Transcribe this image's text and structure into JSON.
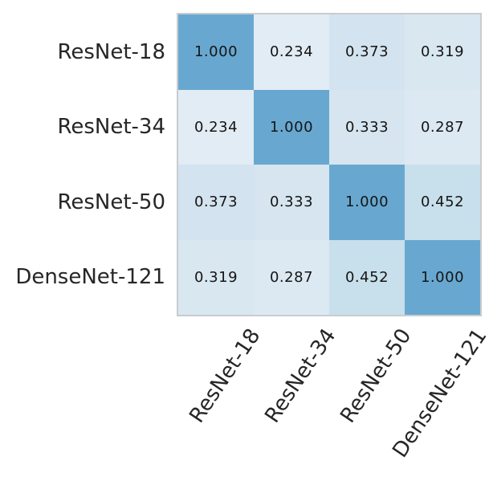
{
  "chart_data": {
    "type": "heatmap",
    "title": "",
    "categories": [
      "ResNet-18",
      "ResNet-34",
      "ResNet-50",
      "DenseNet-121"
    ],
    "x_tick_labels": [
      "ResNet-18",
      "ResNet-34",
      "ResNet-50",
      "DenseNet-121"
    ],
    "y_tick_labels": [
      "ResNet-18",
      "ResNet-34",
      "ResNet-50",
      "DenseNet-121"
    ],
    "matrix": [
      [
        1.0,
        0.234,
        0.373,
        0.319
      ],
      [
        0.234,
        1.0,
        0.333,
        0.287
      ],
      [
        0.373,
        0.333,
        1.0,
        0.452
      ],
      [
        0.319,
        0.287,
        0.452,
        1.0
      ]
    ],
    "cell_labels": [
      [
        "1.000",
        "0.234",
        "0.373",
        "0.319"
      ],
      [
        "0.234",
        "1.000",
        "0.333",
        "0.287"
      ],
      [
        "0.373",
        "0.333",
        "1.000",
        "0.452"
      ],
      [
        "0.319",
        "0.287",
        "0.452",
        "1.000"
      ]
    ],
    "cell_colors": [
      [
        "#68a8d0",
        "#e2ecf4",
        "#d3e3ef",
        "#d9e7f1"
      ],
      [
        "#e2ecf4",
        "#68a8d0",
        "#d6e5ef",
        "#dce9f2"
      ],
      [
        "#d3e3ef",
        "#d6e5ef",
        "#68a8d0",
        "#c8dfec"
      ],
      [
        "#d9e7f1",
        "#dce9f2",
        "#c8dfec",
        "#68a8d0"
      ]
    ],
    "colormap": "Blues",
    "value_range": [
      0.234,
      1.0
    ],
    "x_tick_rotation_deg": 56,
    "grid": false,
    "legend": "none",
    "annotation_color": "#151515",
    "tick_label_color": "#262626",
    "border_color": "#c9cccf",
    "background_color": "#ffffff"
  }
}
